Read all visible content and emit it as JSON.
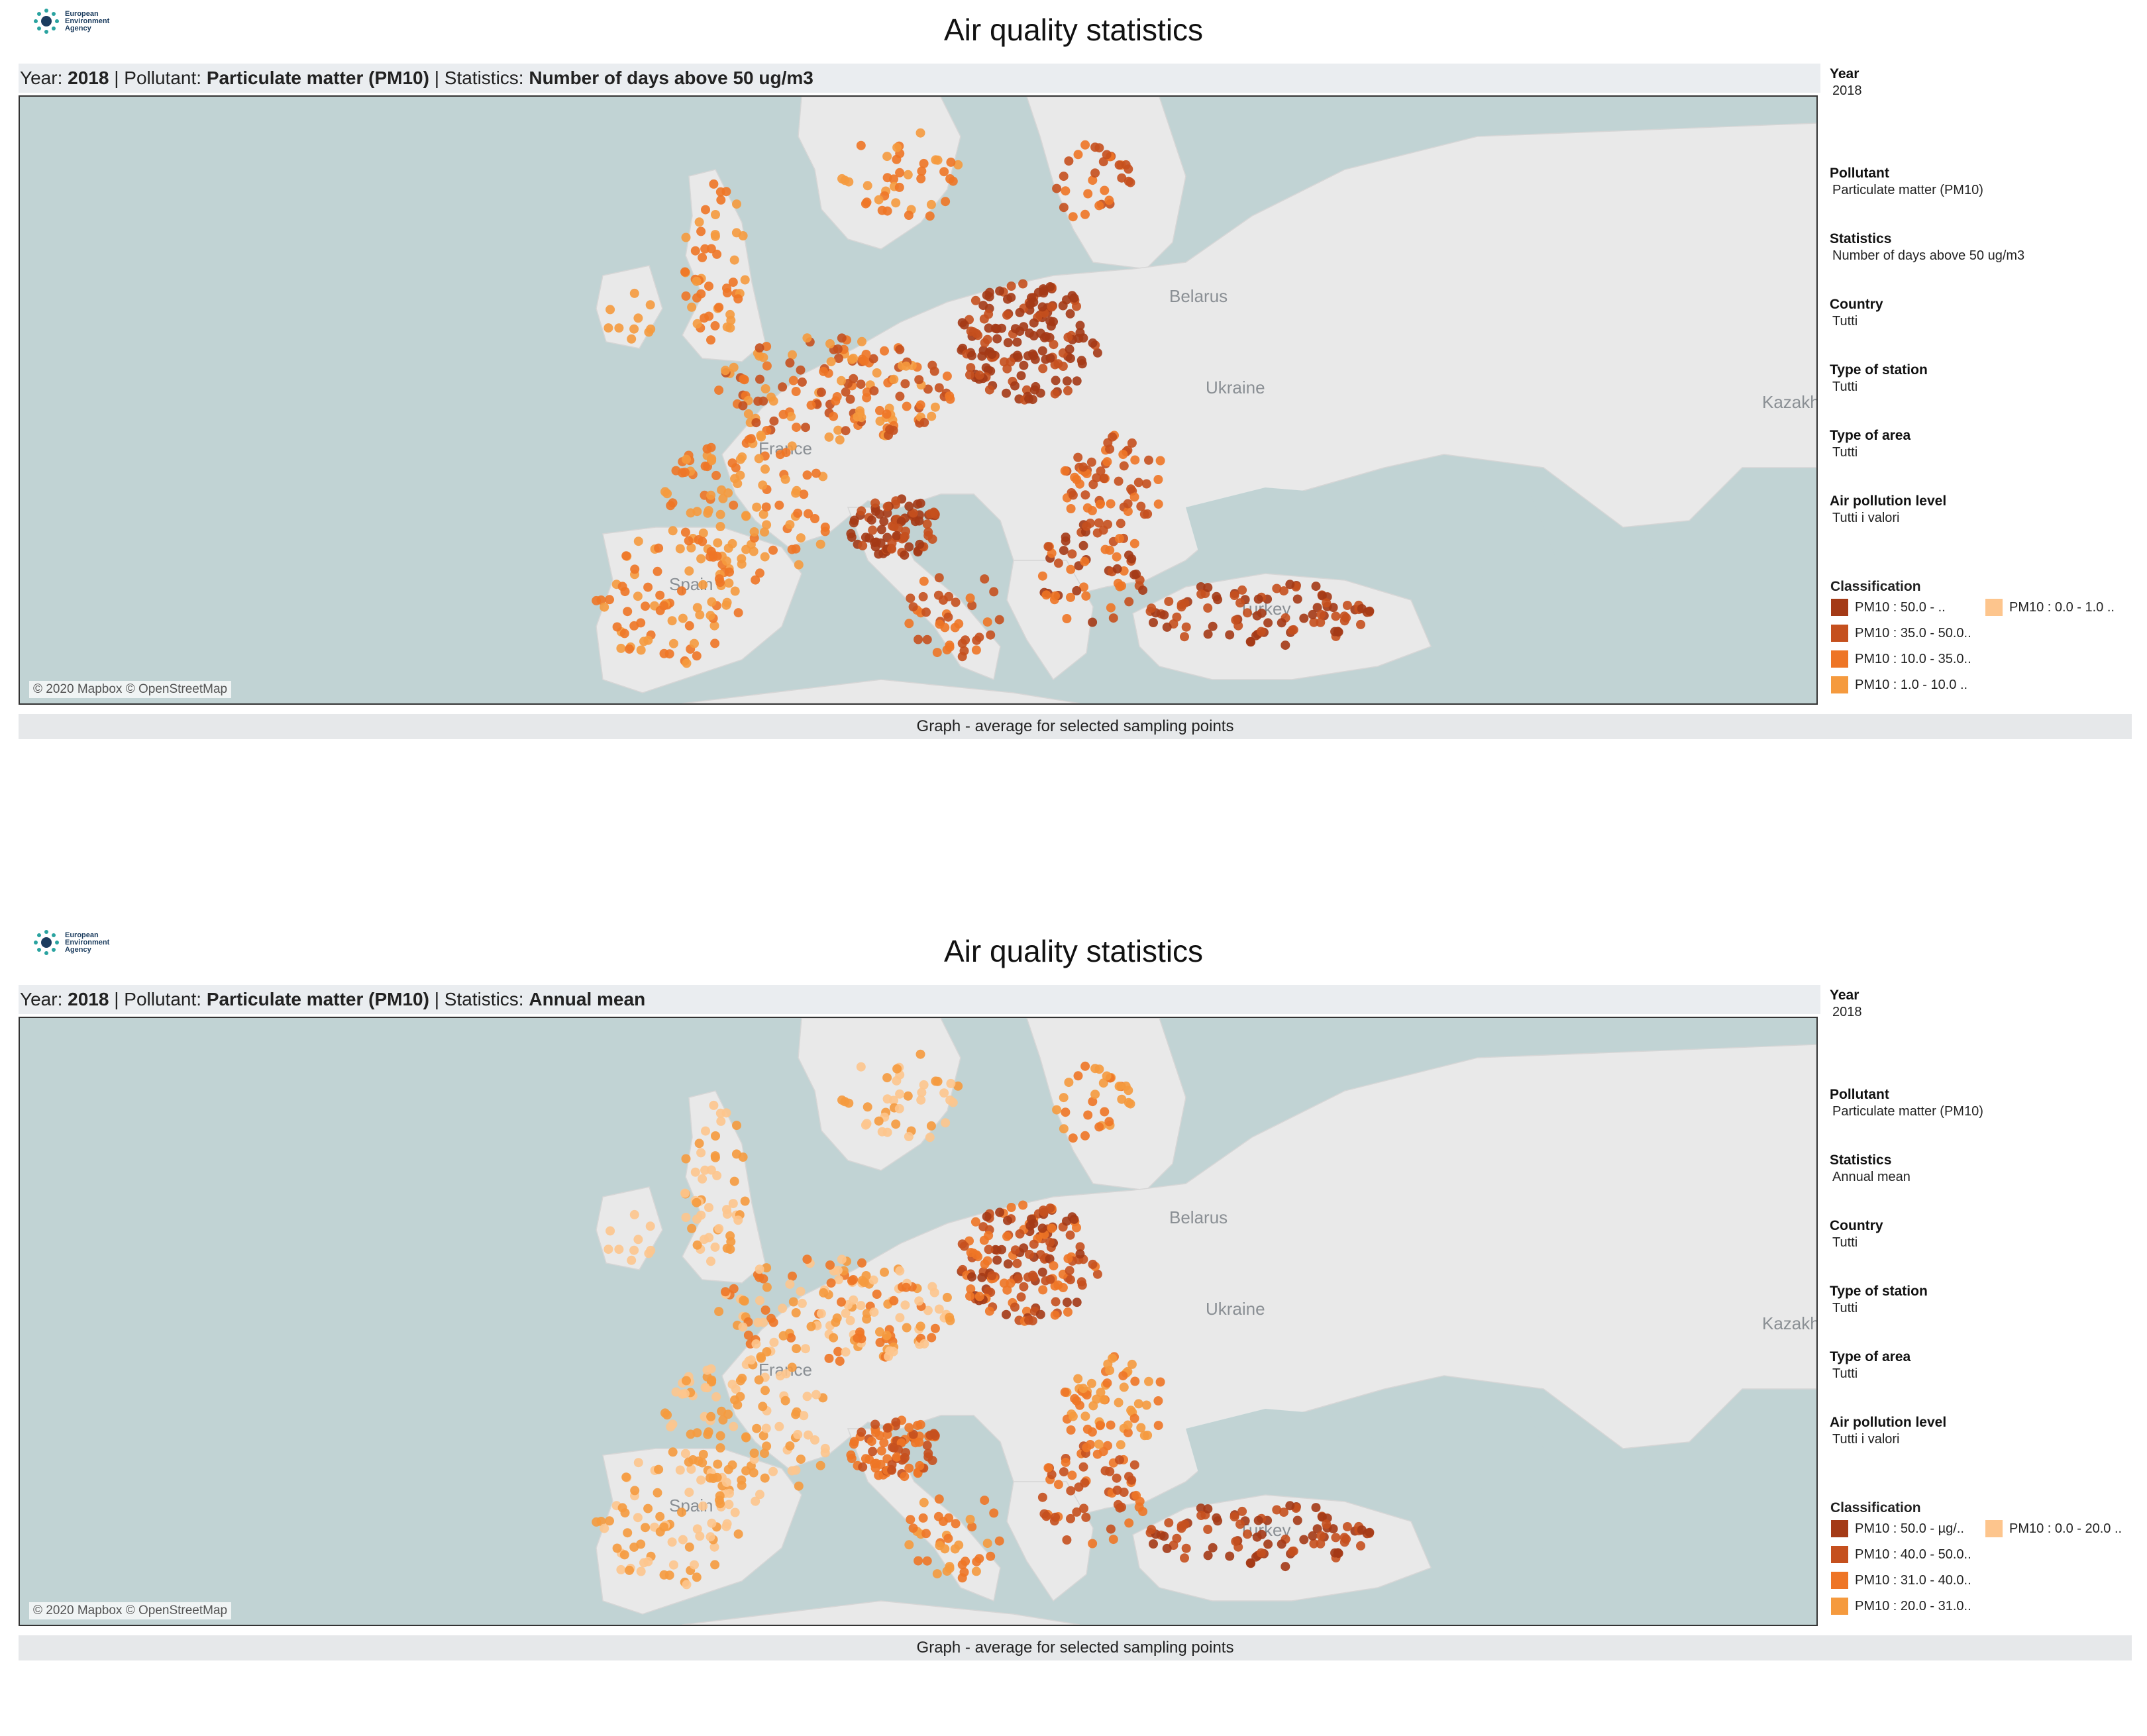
{
  "colors": {
    "sea": "#c1d3d4",
    "land": "#e9e9e9",
    "darkest": "#a43a16",
    "dark": "#c5501e",
    "mid": "#ee7526",
    "light": "#f59a3e",
    "lightest": "#fdc58d"
  },
  "panels": [
    {
      "logo_text": "European Environment Agency",
      "title": "Air quality statistics",
      "sub_year_label": "Year:",
      "sub_year_value": "2018",
      "sub_pollutant_label": "Pollutant:",
      "sub_pollutant_value": "Particulate matter (PM10)",
      "sub_stat_label": "Statistics:",
      "sub_stat_value": "Number of days above 50 ug/m3",
      "map_labels": [
        "Belarus",
        "Ukraine",
        "Kazakh",
        "France",
        "Spain",
        "Turkey"
      ],
      "credit": "© 2020 Mapbox © OpenStreetMap",
      "footer": "Graph - average for selected sampling points",
      "filters": [
        {
          "label": "Year",
          "value": "2018"
        },
        {
          "label": "Pollutant",
          "value": "Particulate matter (PM10)"
        },
        {
          "label": "Statistics",
          "value": "Number of days above 50 ug/m3"
        },
        {
          "label": "Country",
          "value": "Tutti"
        },
        {
          "label": "Type of station",
          "value": "Tutti"
        },
        {
          "label": "Type of area",
          "value": "Tutti"
        },
        {
          "label": "Air pollution level",
          "value": "Tutti i valori"
        }
      ],
      "classification_title": "Classification",
      "classification": [
        {
          "label": "PM10 : 50.0 -         ..",
          "color": "#a43a16"
        },
        {
          "label": "PM10 : 35.0 - 50.0..",
          "color": "#c5501e"
        },
        {
          "label": "PM10 : 10.0 - 35.0..",
          "color": "#ee7526"
        },
        {
          "label": "PM10 : 1.0 - 10.0  ..",
          "color": "#f59a3e"
        },
        {
          "label": "PM10 : 0.0 - 1.0    ..",
          "color": "#fdc58d"
        }
      ]
    },
    {
      "logo_text": "European Environment Agency",
      "title": "Air quality statistics",
      "sub_year_label": "Year:",
      "sub_year_value": "2018",
      "sub_pollutant_label": "Pollutant:",
      "sub_pollutant_value": "Particulate matter (PM10)",
      "sub_stat_label": "Statistics:",
      "sub_stat_value": "Annual mean",
      "map_labels": [
        "Belarus",
        "Ukraine",
        "Kazakh",
        "France",
        "Spain",
        "Turkey"
      ],
      "credit": "© 2020 Mapbox © OpenStreetMap",
      "footer": "Graph - average for selected sampling points",
      "filters": [
        {
          "label": "Year",
          "value": "2018"
        },
        {
          "label": "Pollutant",
          "value": "Particulate matter (PM10)"
        },
        {
          "label": "Statistics",
          "value": "Annual mean"
        },
        {
          "label": "Country",
          "value": "Tutti"
        },
        {
          "label": "Type of station",
          "value": "Tutti"
        },
        {
          "label": "Type of area",
          "value": "Tutti"
        },
        {
          "label": "Air pollution level",
          "value": "Tutti i valori"
        }
      ],
      "classification_title": "Classification",
      "classification": [
        {
          "label": "PM10 : 50.0 -  µg/..",
          "color": "#a43a16"
        },
        {
          "label": "PM10 : 40.0 - 50.0..",
          "color": "#c5501e"
        },
        {
          "label": "PM10 : 31.0 - 40.0..",
          "color": "#ee7526"
        },
        {
          "label": "PM10 : 20.0 - 31.0..",
          "color": "#f59a3e"
        },
        {
          "label": "PM10 : 0.0 - 20.0   ..",
          "color": "#fdc58d"
        }
      ]
    }
  ]
}
